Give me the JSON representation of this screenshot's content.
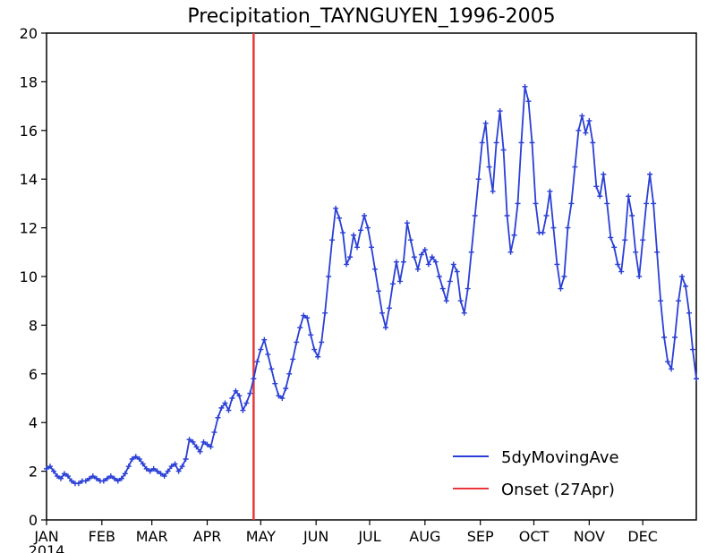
{
  "chart_data": {
    "type": "line",
    "title": "Precipitation_TAYNGUYEN_1996-2005",
    "xlabel": "",
    "ylabel": "",
    "ylim": [
      0,
      20
    ],
    "xlim_days": [
      1,
      365
    ],
    "year_label": "2014",
    "grid": false,
    "legend_position": "bottom-right",
    "y_ticks": [
      0,
      2,
      4,
      6,
      8,
      10,
      12,
      14,
      16,
      18,
      20
    ],
    "x_tick_labels": [
      "JAN",
      "FEB",
      "MAR",
      "APR",
      "MAY",
      "JUN",
      "JUL",
      "AUG",
      "SEP",
      "OCT",
      "NOV",
      "DEC"
    ],
    "x_tick_days": [
      1,
      32,
      60,
      91,
      121,
      152,
      182,
      213,
      244,
      274,
      305,
      335
    ],
    "series": [
      {
        "name": "5dyMovingAve",
        "color": "#2a3fd6",
        "marker": "+",
        "points": [
          [
            1,
            2.1
          ],
          [
            3,
            2.2
          ],
          [
            5,
            2.0
          ],
          [
            7,
            1.8
          ],
          [
            9,
            1.7
          ],
          [
            11,
            1.9
          ],
          [
            13,
            1.8
          ],
          [
            15,
            1.6
          ],
          [
            17,
            1.5
          ],
          [
            19,
            1.5
          ],
          [
            21,
            1.6
          ],
          [
            23,
            1.6
          ],
          [
            25,
            1.7
          ],
          [
            27,
            1.8
          ],
          [
            29,
            1.7
          ],
          [
            31,
            1.6
          ],
          [
            33,
            1.6
          ],
          [
            35,
            1.7
          ],
          [
            37,
            1.8
          ],
          [
            39,
            1.7
          ],
          [
            41,
            1.6
          ],
          [
            43,
            1.7
          ],
          [
            45,
            1.9
          ],
          [
            47,
            2.2
          ],
          [
            49,
            2.5
          ],
          [
            51,
            2.6
          ],
          [
            53,
            2.5
          ],
          [
            55,
            2.3
          ],
          [
            57,
            2.1
          ],
          [
            59,
            2.0
          ],
          [
            61,
            2.1
          ],
          [
            63,
            2.0
          ],
          [
            65,
            1.9
          ],
          [
            67,
            1.8
          ],
          [
            69,
            2.0
          ],
          [
            71,
            2.2
          ],
          [
            73,
            2.3
          ],
          [
            75,
            2.0
          ],
          [
            77,
            2.2
          ],
          [
            79,
            2.5
          ],
          [
            81,
            3.3
          ],
          [
            83,
            3.2
          ],
          [
            85,
            3.0
          ],
          [
            87,
            2.8
          ],
          [
            89,
            3.2
          ],
          [
            91,
            3.1
          ],
          [
            93,
            3.0
          ],
          [
            95,
            3.6
          ],
          [
            97,
            4.2
          ],
          [
            99,
            4.6
          ],
          [
            101,
            4.8
          ],
          [
            103,
            4.5
          ],
          [
            105,
            5.0
          ],
          [
            107,
            5.3
          ],
          [
            109,
            5.1
          ],
          [
            111,
            4.5
          ],
          [
            113,
            4.8
          ],
          [
            115,
            5.2
          ],
          [
            117,
            5.8
          ],
          [
            119,
            6.5
          ],
          [
            121,
            7.0
          ],
          [
            123,
            7.4
          ],
          [
            125,
            6.8
          ],
          [
            127,
            6.2
          ],
          [
            129,
            5.6
          ],
          [
            131,
            5.1
          ],
          [
            133,
            5.0
          ],
          [
            135,
            5.4
          ],
          [
            137,
            6.0
          ],
          [
            139,
            6.6
          ],
          [
            141,
            7.3
          ],
          [
            143,
            7.9
          ],
          [
            145,
            8.4
          ],
          [
            147,
            8.3
          ],
          [
            149,
            7.6
          ],
          [
            151,
            7.0
          ],
          [
            153,
            6.7
          ],
          [
            155,
            7.3
          ],
          [
            157,
            8.5
          ],
          [
            159,
            10.0
          ],
          [
            161,
            11.5
          ],
          [
            163,
            12.8
          ],
          [
            165,
            12.4
          ],
          [
            167,
            11.8
          ],
          [
            169,
            10.5
          ],
          [
            171,
            10.8
          ],
          [
            173,
            11.7
          ],
          [
            175,
            11.2
          ],
          [
            177,
            11.9
          ],
          [
            179,
            12.5
          ],
          [
            181,
            12.0
          ],
          [
            183,
            11.2
          ],
          [
            185,
            10.3
          ],
          [
            187,
            9.4
          ],
          [
            189,
            8.5
          ],
          [
            191,
            7.9
          ],
          [
            193,
            8.7
          ],
          [
            195,
            9.7
          ],
          [
            197,
            10.6
          ],
          [
            199,
            9.8
          ],
          [
            201,
            10.6
          ],
          [
            203,
            12.2
          ],
          [
            205,
            11.5
          ],
          [
            207,
            10.8
          ],
          [
            209,
            10.3
          ],
          [
            211,
            10.9
          ],
          [
            213,
            11.1
          ],
          [
            215,
            10.5
          ],
          [
            217,
            10.8
          ],
          [
            219,
            10.6
          ],
          [
            221,
            10.0
          ],
          [
            223,
            9.5
          ],
          [
            225,
            9.0
          ],
          [
            227,
            9.8
          ],
          [
            229,
            10.5
          ],
          [
            231,
            10.2
          ],
          [
            233,
            9.0
          ],
          [
            235,
            8.5
          ],
          [
            237,
            9.5
          ],
          [
            239,
            11.0
          ],
          [
            241,
            12.5
          ],
          [
            243,
            14.0
          ],
          [
            245,
            15.5
          ],
          [
            247,
            16.3
          ],
          [
            249,
            14.5
          ],
          [
            251,
            13.5
          ],
          [
            253,
            15.5
          ],
          [
            255,
            16.8
          ],
          [
            257,
            15.2
          ],
          [
            259,
            12.5
          ],
          [
            261,
            11.0
          ],
          [
            263,
            11.7
          ],
          [
            265,
            13.0
          ],
          [
            267,
            15.5
          ],
          [
            269,
            17.8
          ],
          [
            271,
            17.2
          ],
          [
            273,
            15.5
          ],
          [
            275,
            13.0
          ],
          [
            277,
            11.8
          ],
          [
            279,
            11.8
          ],
          [
            281,
            12.5
          ],
          [
            283,
            13.5
          ],
          [
            285,
            12.0
          ],
          [
            287,
            10.5
          ],
          [
            289,
            9.5
          ],
          [
            291,
            10.0
          ],
          [
            293,
            12.0
          ],
          [
            295,
            13.0
          ],
          [
            297,
            14.5
          ],
          [
            299,
            16.0
          ],
          [
            301,
            16.6
          ],
          [
            303,
            15.9
          ],
          [
            305,
            16.4
          ],
          [
            307,
            15.5
          ],
          [
            309,
            13.7
          ],
          [
            311,
            13.3
          ],
          [
            313,
            14.2
          ],
          [
            315,
            13.0
          ],
          [
            317,
            11.6
          ],
          [
            319,
            11.2
          ],
          [
            321,
            10.5
          ],
          [
            323,
            10.2
          ],
          [
            325,
            11.5
          ],
          [
            327,
            13.3
          ],
          [
            329,
            12.5
          ],
          [
            331,
            11.0
          ],
          [
            333,
            10.0
          ],
          [
            335,
            11.5
          ],
          [
            337,
            13.0
          ],
          [
            339,
            14.2
          ],
          [
            341,
            13.0
          ],
          [
            343,
            11.0
          ],
          [
            345,
            9.0
          ],
          [
            347,
            7.5
          ],
          [
            349,
            6.5
          ],
          [
            351,
            6.2
          ],
          [
            353,
            7.5
          ],
          [
            355,
            9.0
          ],
          [
            357,
            10.0
          ],
          [
            359,
            9.6
          ],
          [
            361,
            8.5
          ],
          [
            363,
            7.0
          ],
          [
            365,
            5.8
          ]
        ]
      },
      {
        "name": "Onset (27Apr)",
        "color": "#e8363a",
        "onset_day": 117
      }
    ]
  }
}
